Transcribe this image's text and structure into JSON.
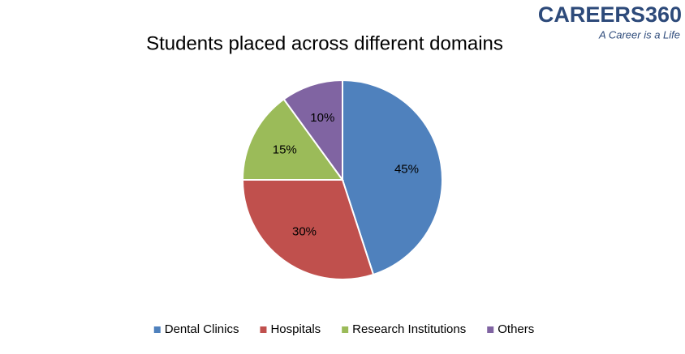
{
  "chart_data": {
    "type": "pie",
    "title": "Students placed across different domains",
    "categories": [
      "Dental Clinics",
      "Hospitals",
      "Research Institutions",
      "Others"
    ],
    "values": [
      45,
      30,
      15,
      10
    ],
    "value_labels": [
      "45%",
      "30%",
      "15%",
      "10%"
    ],
    "colors": [
      "#4f81bd",
      "#c0504d",
      "#9bbb59",
      "#8064a2"
    ],
    "legend": "bottom",
    "logo": {
      "name": "CAREERS360",
      "tagline": "A Career is a Life"
    }
  }
}
